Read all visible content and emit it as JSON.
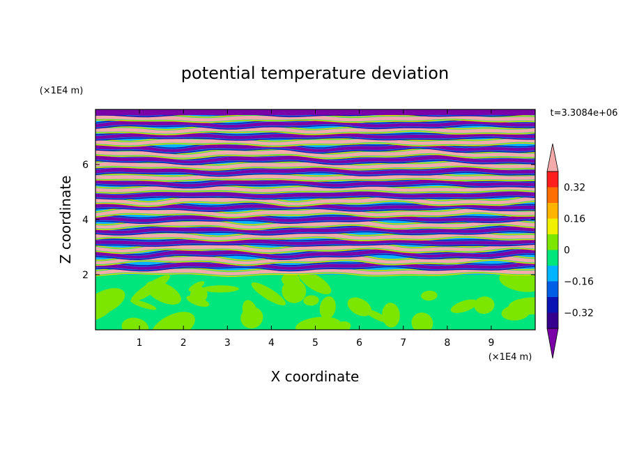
{
  "chart_data": {
    "type": "heatmap",
    "title": "potential temperature deviation",
    "xlabel": "X coordinate",
    "ylabel": "Z coordinate",
    "x_unit": "(×1E4 m)",
    "y_unit": "(×1E4 m)",
    "time_label": "t=3.3084e+06",
    "xlim": [
      0,
      10
    ],
    "ylim": [
      0,
      8
    ],
    "x_ticks": [
      "1",
      "2",
      "3",
      "4",
      "5",
      "6",
      "7",
      "8",
      "9"
    ],
    "y_ticks": [
      "2",
      "4",
      "6"
    ],
    "colorbar": {
      "levels": [
        -0.4,
        -0.32,
        -0.24,
        -0.16,
        -0.08,
        0,
        0.08,
        0.16,
        0.24,
        0.32,
        0.4
      ],
      "tick_labels": [
        "0.32",
        "0.16",
        "0",
        "−0.16",
        "−0.32"
      ],
      "tick_values": [
        0.32,
        0.16,
        0,
        -0.16,
        -0.32
      ],
      "colors": [
        "#7b00a8",
        "#36008f",
        "#0a14b4",
        "#005ee6",
        "#00b4ff",
        "#00e67d",
        "#7de600",
        "#f0f000",
        "#ffb400",
        "#ff6e00",
        "#ff1e1e",
        "#f5aaaa"
      ],
      "extend": "both"
    },
    "structure": {
      "lower_layer_z": [
        0,
        2
      ],
      "lower_layer_range": [
        0,
        0.08
      ],
      "upper_layer_z": [
        2,
        8
      ],
      "upper_layer_pattern": "horizontal stratified bands alternating between -0.4 and 0.4",
      "upper_band_count": 28
    }
  }
}
